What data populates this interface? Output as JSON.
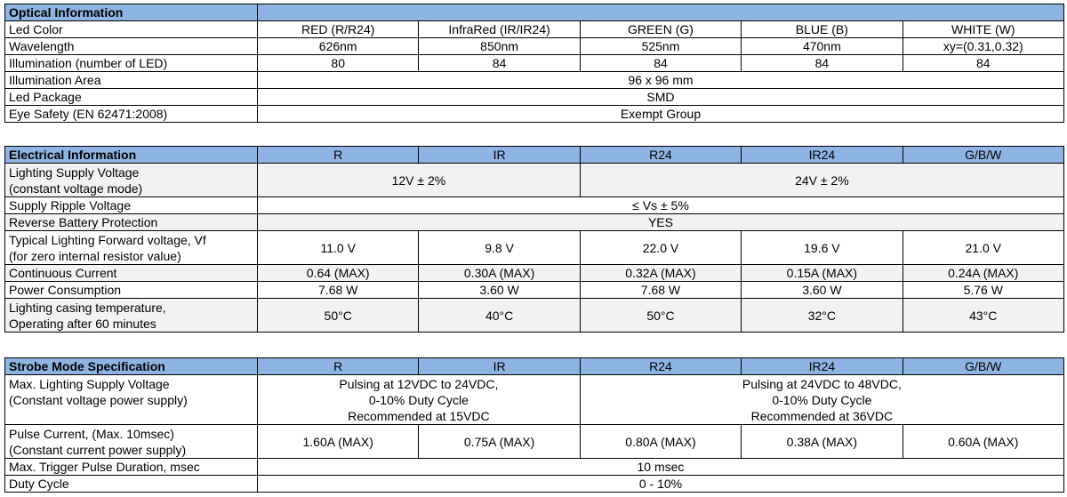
{
  "optical": {
    "title": "Optical Information",
    "rows": [
      {
        "label": "Led Color",
        "cells": [
          "RED (R/R24)",
          "InfraRed (IR/IR24)",
          "GREEN (G)",
          "BLUE (B)",
          "WHITE (W)"
        ]
      },
      {
        "label": "Wavelength",
        "cells": [
          "626nm",
          "850nm",
          "525nm",
          "470nm",
          "xy=(0.31,0.32)"
        ]
      },
      {
        "label": "Illumination (number of LED)",
        "cells": [
          "80",
          "84",
          "84",
          "84",
          "84"
        ]
      },
      {
        "label": "Illumination Area",
        "span": "96 x 96 mm"
      },
      {
        "label": "Led Package",
        "span": "SMD"
      },
      {
        "label": "Eye Safety (EN 62471:2008)",
        "span": "Exempt Group"
      }
    ]
  },
  "electrical": {
    "title": "Electrical Information",
    "columns": [
      "R",
      "IR",
      "R24",
      "IR24",
      "G/B/W"
    ],
    "supply_voltage": {
      "label1": "Lighting Supply Voltage",
      "label2": "(constant voltage mode)",
      "left": "12V ± 2%",
      "right": "24V ± 2%"
    },
    "ripple": {
      "label": "Supply Ripple Voltage",
      "value": "≤ Vs ± 5%"
    },
    "reverse": {
      "label": "Reverse Battery Protection",
      "value": "YES"
    },
    "forward": {
      "label1": "Typical Lighting Forward voltage, Vf",
      "label2": "(for zero internal resistor value)",
      "cells": [
        "11.0 V",
        "9.8 V",
        "22.0 V",
        "19.6 V",
        "21.0 V"
      ]
    },
    "current": {
      "label": "Continuous Current",
      "cells": [
        "0.64 (MAX)",
        "0.30A (MAX)",
        "0.32A (MAX)",
        "0.15A (MAX)",
        "0.24A (MAX)"
      ]
    },
    "power": {
      "label": "Power Consumption",
      "cells": [
        "7.68 W",
        "3.60 W",
        "7.68 W",
        "3.60 W",
        "5.76 W"
      ]
    },
    "temperature": {
      "label1": "Lighting casing temperature,",
      "label2": "Operating after 60 minutes",
      "cells": [
        "50°C",
        "40°C",
        "50°C",
        "32°C",
        "43°C"
      ]
    }
  },
  "strobe": {
    "title": "Strobe Mode Specification",
    "columns": [
      "R",
      "IR",
      "R24",
      "IR24",
      "G/B/W"
    ],
    "max_voltage": {
      "label1": "Max. Lighting Supply Voltage",
      "label2": "(Constant voltage power supply)",
      "left": [
        "Pulsing at 12VDC to 24VDC,",
        "0-10% Duty Cycle",
        "Recommended at 15VDC"
      ],
      "right": [
        "Pulsing at 24VDC to 48VDC,",
        "0-10% Duty Cycle",
        "Recommended at 36VDC"
      ]
    },
    "pulse_current": {
      "label1": "Pulse Current, (Max. 10msec)",
      "label2": "(Constant current power supply)",
      "cells": [
        "1.60A (MAX)",
        "0.75A (MAX)",
        "0.80A (MAX)",
        "0.38A (MAX)",
        "0.60A (MAX)"
      ]
    },
    "trigger": {
      "label": "Max. Trigger Pulse Duration, msec",
      "value": "10 msec"
    },
    "duty": {
      "label": "Duty Cycle",
      "value": "0 - 10%"
    }
  }
}
